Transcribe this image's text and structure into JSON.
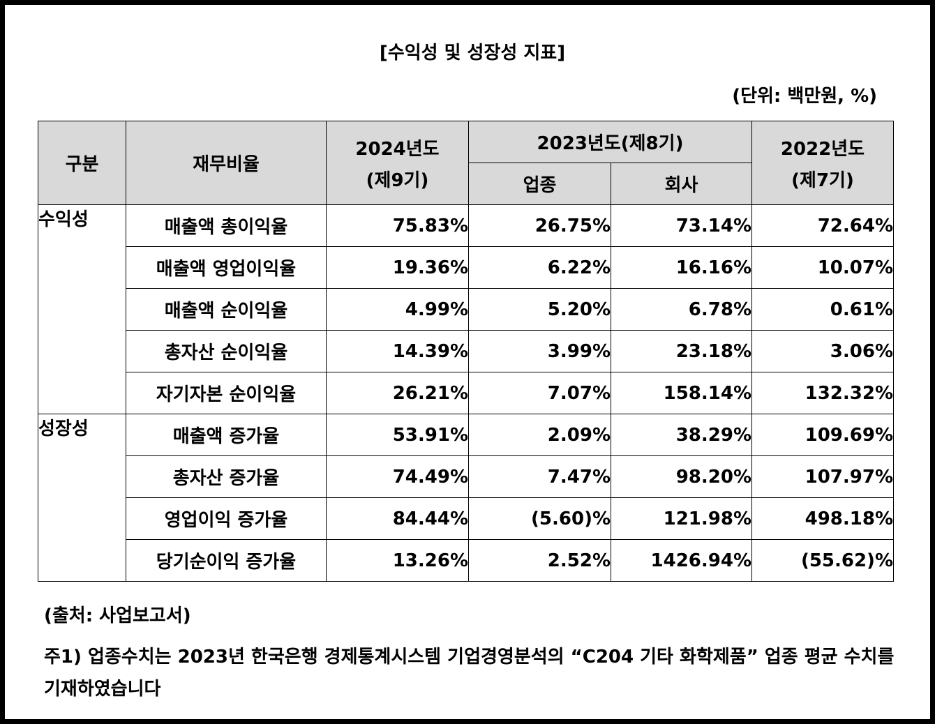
{
  "title": "[수익성 및 성장성 지표]",
  "unit": "(단위: 백만원, %)",
  "table": {
    "headers": {
      "category": "구분",
      "ratio": "재무비율",
      "fy2024_line1": "2024년도",
      "fy2024_line2": "(제9기)",
      "fy2023": "2023년도(제8기)",
      "fy2023_industry": "업종",
      "fy2023_company": "회사",
      "fy2022_line1": "2022년도",
      "fy2022_line2": "(제7기)"
    },
    "groups": [
      {
        "name": "수익성",
        "rows": [
          {
            "label": "매출액 총이익율",
            "fy2024": "75.83%",
            "industry": "26.75%",
            "company": "73.14%",
            "fy2022": "72.64%"
          },
          {
            "label": "매출액 영업이익율",
            "fy2024": "19.36%",
            "industry": "6.22%",
            "company": "16.16%",
            "fy2022": "10.07%"
          },
          {
            "label": "매출액 순이익율",
            "fy2024": "4.99%",
            "industry": "5.20%",
            "company": "6.78%",
            "fy2022": "0.61%"
          },
          {
            "label": "총자산 순이익율",
            "fy2024": "14.39%",
            "industry": "3.99%",
            "company": "23.18%",
            "fy2022": "3.06%"
          },
          {
            "label": "자기자본 순이익율",
            "fy2024": "26.21%",
            "industry": "7.07%",
            "company": "158.14%",
            "fy2022": "132.32%"
          }
        ]
      },
      {
        "name": "성장성",
        "rows": [
          {
            "label": "매출액 증가율",
            "fy2024": "53.91%",
            "industry": "2.09%",
            "company": "38.29%",
            "fy2022": "109.69%"
          },
          {
            "label": "총자산 증가율",
            "fy2024": "74.49%",
            "industry": "7.47%",
            "company": "98.20%",
            "fy2022": "107.97%"
          },
          {
            "label": "영업이익 증가율",
            "fy2024": "84.44%",
            "industry": "(5.60)%",
            "company": "121.98%",
            "fy2022": "498.18%"
          },
          {
            "label": "당기순이익 증가율",
            "fy2024": "13.26%",
            "industry": "2.52%",
            "company": "1426.94%",
            "fy2022": "(55.62)%"
          }
        ]
      }
    ]
  },
  "source": "(출처: 사업보고서)",
  "note": "주1) 업종수치는 2023년 한국은행 경제통계시스템 기업경영분석의 “C204 기타 화학제품” 업종 평균 수치를 기재하였습니다"
}
